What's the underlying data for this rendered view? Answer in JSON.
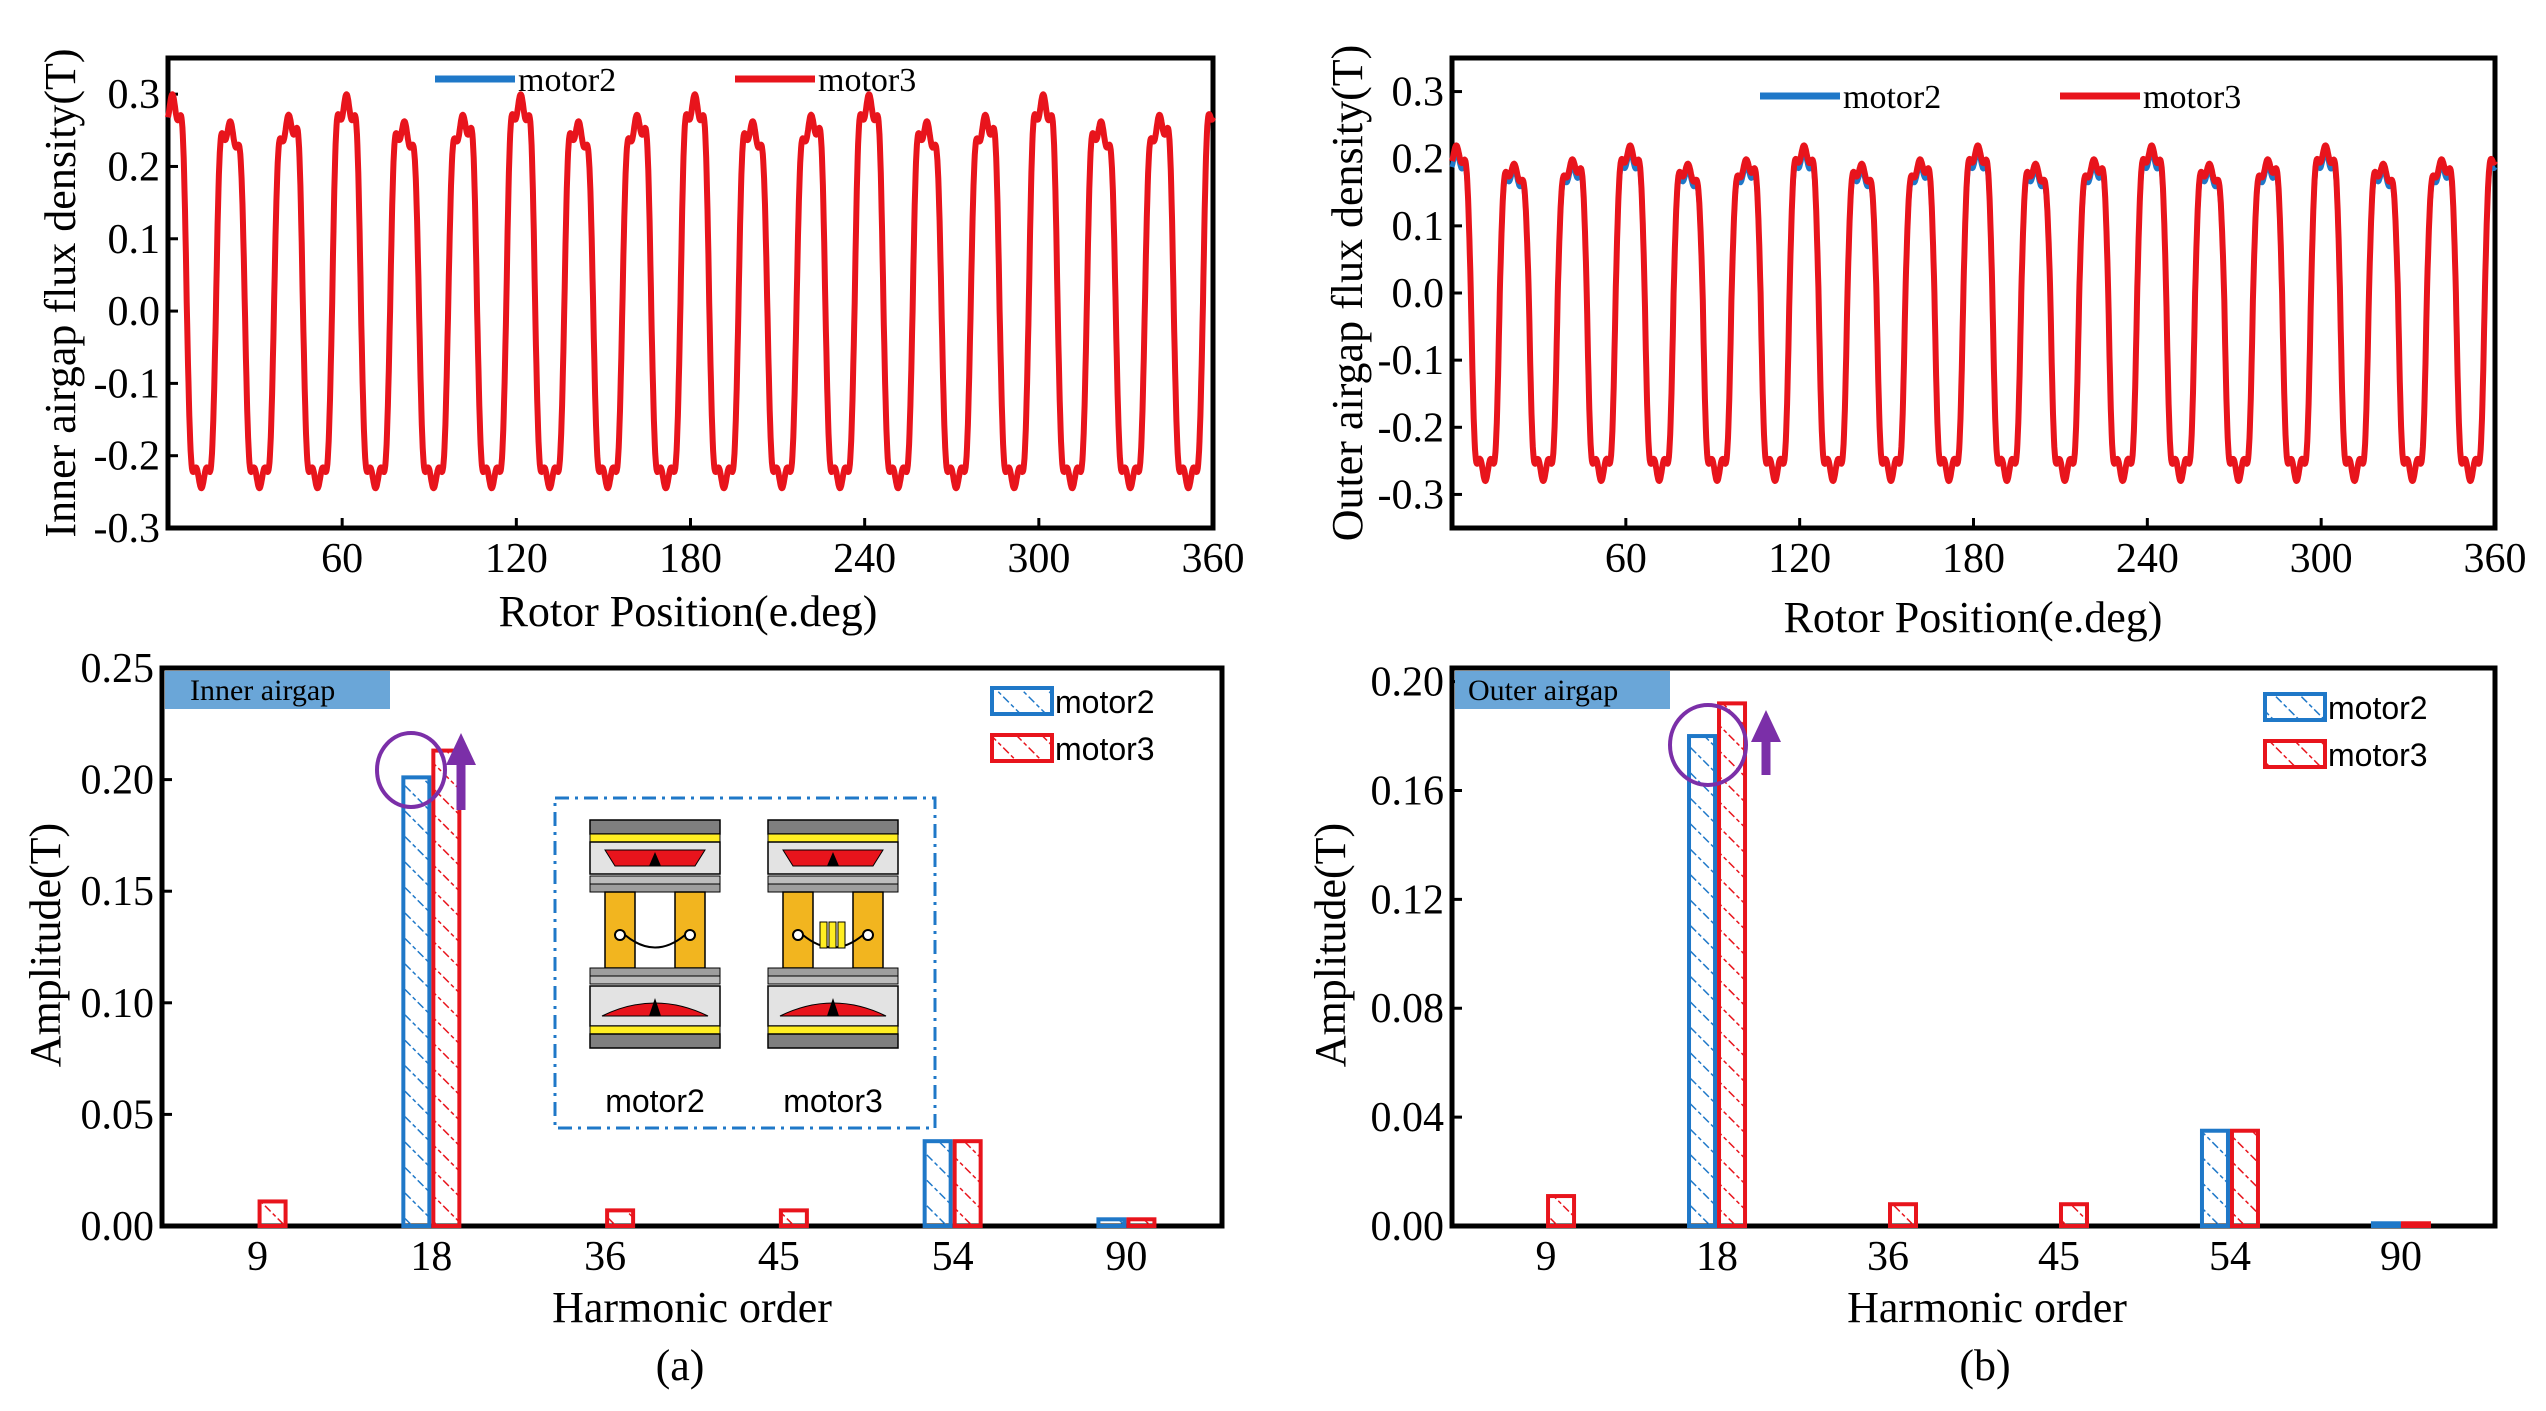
{
  "colors": {
    "motor2": "#1f78c8",
    "motor3": "#e8141c",
    "tag_bg": "#6aa6d8",
    "highlight": "#7b2fa8",
    "rotor_yellow": "#f2b51f"
  },
  "chart_data": [
    {
      "id": "inner-waveform",
      "type": "line",
      "xlabel": "Rotor Position(e.deg)",
      "ylabel": "Inner airgap flux density(T)",
      "xlim": [
        0,
        360
      ],
      "ylim": [
        -0.3,
        0.35
      ],
      "xticks": [
        "60",
        "120",
        "180",
        "240",
        "300",
        "360"
      ],
      "yticks": [
        "-0.3",
        "-0.2",
        "-0.1",
        "0.0",
        "0.1",
        "0.2",
        "0.3"
      ],
      "legend": [
        "motor2",
        "motor3"
      ],
      "waveform": {
        "periods": 18,
        "motor2_fundamental": 0.2,
        "motor3_fundamental": 0.212,
        "peak_max": 0.3,
        "peak_min": -0.245
      },
      "series": [
        {
          "name": "motor2",
          "peaks_max": 0.3,
          "peaks_min": -0.245
        },
        {
          "name": "motor3",
          "peaks_max": 0.3,
          "peaks_min": -0.245
        }
      ]
    },
    {
      "id": "outer-waveform",
      "type": "line",
      "xlabel": "Rotor Position(e.deg)",
      "ylabel": "Outer airgap flux density(T)",
      "xlim": [
        0,
        360
      ],
      "ylim": [
        -0.35,
        0.35
      ],
      "xticks": [
        "60",
        "120",
        "180",
        "240",
        "300",
        "360"
      ],
      "yticks": [
        "-0.3",
        "-0.2",
        "-0.1",
        "0.0",
        "0.1",
        "0.2",
        "0.3"
      ],
      "legend": [
        "motor2",
        "motor3"
      ],
      "waveform": {
        "periods": 18,
        "motor2_fundamental": 0.18,
        "motor3_fundamental": 0.192,
        "peak_max": 0.22,
        "peak_min": -0.28
      },
      "series": [
        {
          "name": "motor2",
          "peaks_max": 0.21,
          "peaks_min": -0.28
        },
        {
          "name": "motor3",
          "peaks_max": 0.22,
          "peaks_min": -0.28
        }
      ]
    },
    {
      "id": "inner-harmonics",
      "type": "bar",
      "title": "Inner airgap",
      "xlabel": "Harmonic order",
      "ylabel": "Amplitude(T)",
      "categories": [
        "9",
        "18",
        "36",
        "45",
        "54",
        "90"
      ],
      "ylim": [
        0,
        0.25
      ],
      "yticks": [
        "0.00",
        "0.05",
        "0.10",
        "0.15",
        "0.20",
        "0.25"
      ],
      "series": [
        {
          "name": "motor2",
          "values": [
            0,
            0.201,
            0,
            0,
            0.038,
            0.003
          ]
        },
        {
          "name": "motor3",
          "values": [
            0.011,
            0.213,
            0.007,
            0.007,
            0.038,
            0.003
          ]
        }
      ],
      "caption": "(a)",
      "inset": {
        "labels": [
          "motor2",
          "motor3"
        ]
      }
    },
    {
      "id": "outer-harmonics",
      "type": "bar",
      "title": "Outer airgap",
      "xlabel": "Harmonic order",
      "ylabel": "Amplitude(T)",
      "categories": [
        "9",
        "18",
        "36",
        "45",
        "54",
        "90"
      ],
      "ylim": [
        0,
        0.205
      ],
      "yticks": [
        "0.00",
        "0.04",
        "0.08",
        "0.12",
        "0.16",
        "0.20"
      ],
      "series": [
        {
          "name": "motor2",
          "values": [
            0,
            0.18,
            0,
            0,
            0.035,
            0.001
          ]
        },
        {
          "name": "motor3",
          "values": [
            0.011,
            0.192,
            0.008,
            0.008,
            0.035,
            0.001
          ]
        }
      ],
      "caption": "(b)"
    }
  ]
}
